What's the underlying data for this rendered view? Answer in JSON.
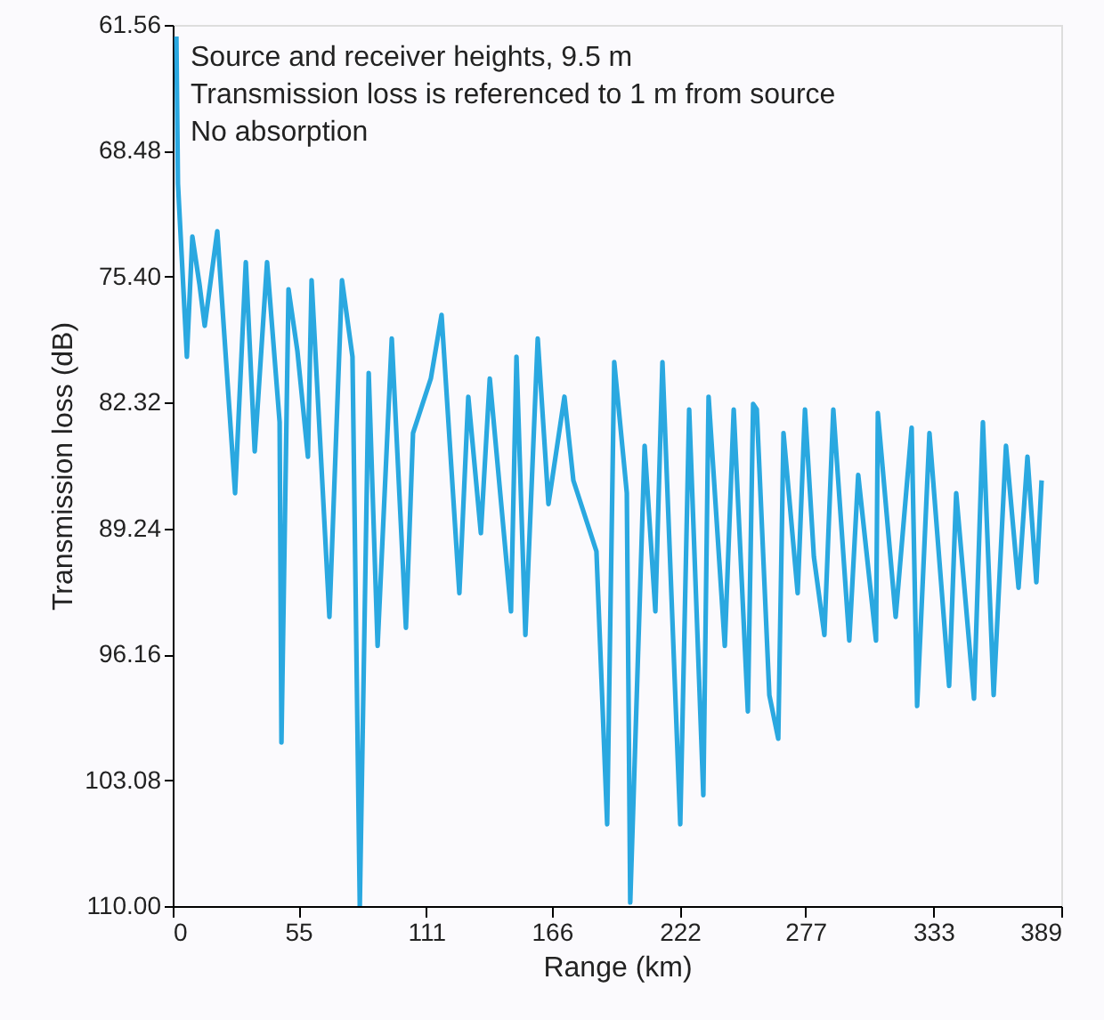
{
  "chart_data": {
    "type": "line",
    "xlabel": "Range (km)",
    "ylabel": "Transmission loss (dB)",
    "annotations": [
      "Source and receiver heights, 9.5 m",
      "Transmission loss is referenced to 1 m from source",
      "No absorption"
    ],
    "xlim": [
      0,
      389
    ],
    "xticks": [
      0,
      55,
      111,
      166,
      222,
      277,
      333,
      389
    ],
    "ylim": [
      110,
      61.56
    ],
    "yticks": [
      61.56,
      68.48,
      {
        "value": 75.4,
        "label": "75.40"
      },
      82.32,
      89.24,
      96.16,
      103.08,
      {
        "value": 110,
        "label": "110.00"
      }
    ],
    "grid": false,
    "line_style": "solid",
    "series": [
      {
        "color": "#2aa8e0",
        "x": [
          1.6,
          2.3,
          6.2,
          8.6,
          11.7,
          14.0,
          19.5,
          27.3,
          32.0,
          35.9,
          41.3,
          46.8,
          47.6,
          50.7,
          54.6,
          59.2,
          60.8,
          68.6,
          74.1,
          78.7,
          81.9,
          85.8,
          89.7,
          95.9,
          102.1,
          105.2,
          113.0,
          117.7,
          125.5,
          129.4,
          134.9,
          138.8,
          148.1,
          150.5,
          154.4,
          159.8,
          164.5,
          171.5,
          175.4,
          185.5,
          190.2,
          193.3,
          198.8,
          200.3,
          206.6,
          211.3,
          214.4,
          222.2,
          226.1,
          232.3,
          234.6,
          241.7,
          245.6,
          251.8,
          254.1,
          255.7,
          261.2,
          265.1,
          267.4,
          273.6,
          276.8,
          280.7,
          285.3,
          289.2,
          296.2,
          300.1,
          307.9,
          308.7,
          316.5,
          323.5,
          325.9,
          331.3,
          339.9,
          343.0,
          350.8,
          354.7,
          359.4,
          364.8,
          370.3,
          374.2,
          378.1,
          380.4
        ],
        "values": [
          62.2,
          70.3,
          79.8,
          73.2,
          75.8,
          78.1,
          72.9,
          87.3,
          74.6,
          85.0,
          74.6,
          83.4,
          101.0,
          76.1,
          79.5,
          85.3,
          75.6,
          94.1,
          75.6,
          79.8,
          110.0,
          80.7,
          95.7,
          78.8,
          94.7,
          84.0,
          81.0,
          77.5,
          92.8,
          82.0,
          89.5,
          81.0,
          93.8,
          79.8,
          95.1,
          78.8,
          87.9,
          82.0,
          86.6,
          90.5,
          105.5,
          80.1,
          87.3,
          109.8,
          84.7,
          93.8,
          80.1,
          105.5,
          82.7,
          103.9,
          82.0,
          95.7,
          82.7,
          99.3,
          82.4,
          82.7,
          98.4,
          100.8,
          84.0,
          92.8,
          82.7,
          90.8,
          95.1,
          82.7,
          95.4,
          86.3,
          95.4,
          82.9,
          94.1,
          83.7,
          99.0,
          84.0,
          97.9,
          87.3,
          98.6,
          83.4,
          98.4,
          84.7,
          92.5,
          85.3,
          92.2,
          86.6
        ]
      }
    ]
  }
}
